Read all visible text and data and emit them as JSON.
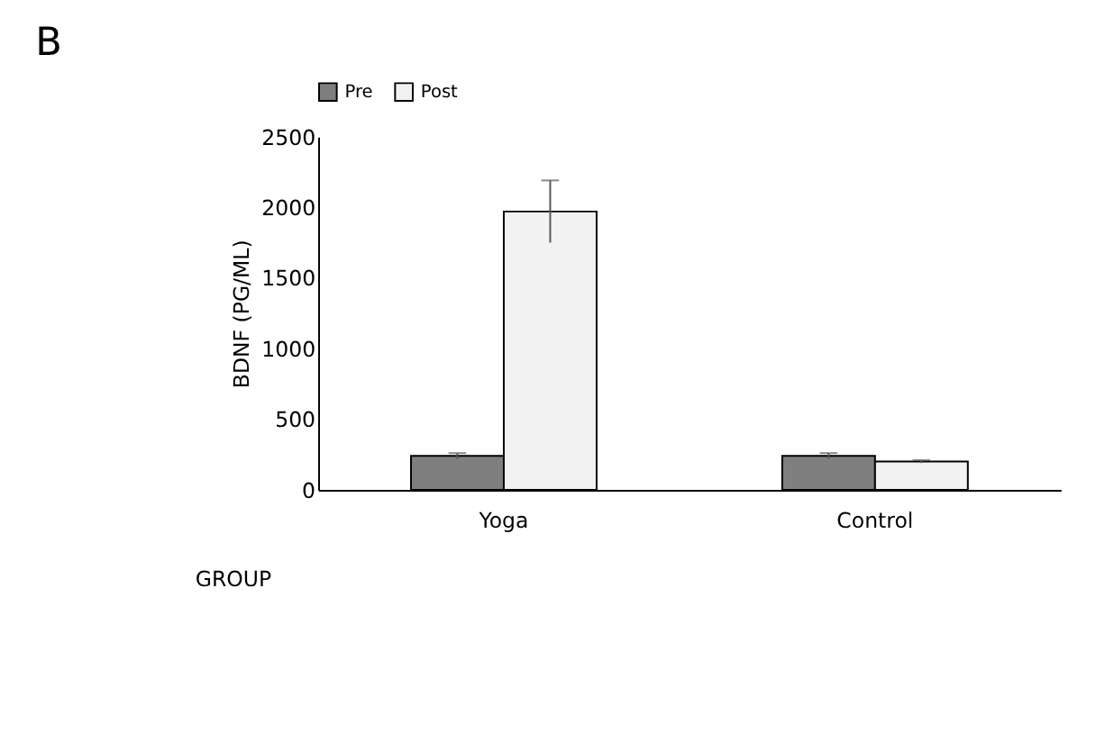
{
  "chart_data": {
    "type": "bar",
    "title": "B",
    "xlabel": "GROUP",
    "ylabel": "BDNF (PG/ML)",
    "categories": [
      "Yoga",
      "Control"
    ],
    "series": [
      {
        "name": "Pre",
        "color": "#7f7f7f",
        "values": [
          240,
          240
        ],
        "errors": [
          20,
          20
        ]
      },
      {
        "name": "Post",
        "color": "#f2f2f2",
        "values": [
          1970,
          200
        ],
        "errors": [
          220,
          10
        ]
      }
    ],
    "ylim": [
      0,
      2500
    ],
    "yticks": [
      0,
      500,
      1000,
      1500,
      2000,
      2500
    ],
    "grid": false,
    "legend": "top"
  }
}
